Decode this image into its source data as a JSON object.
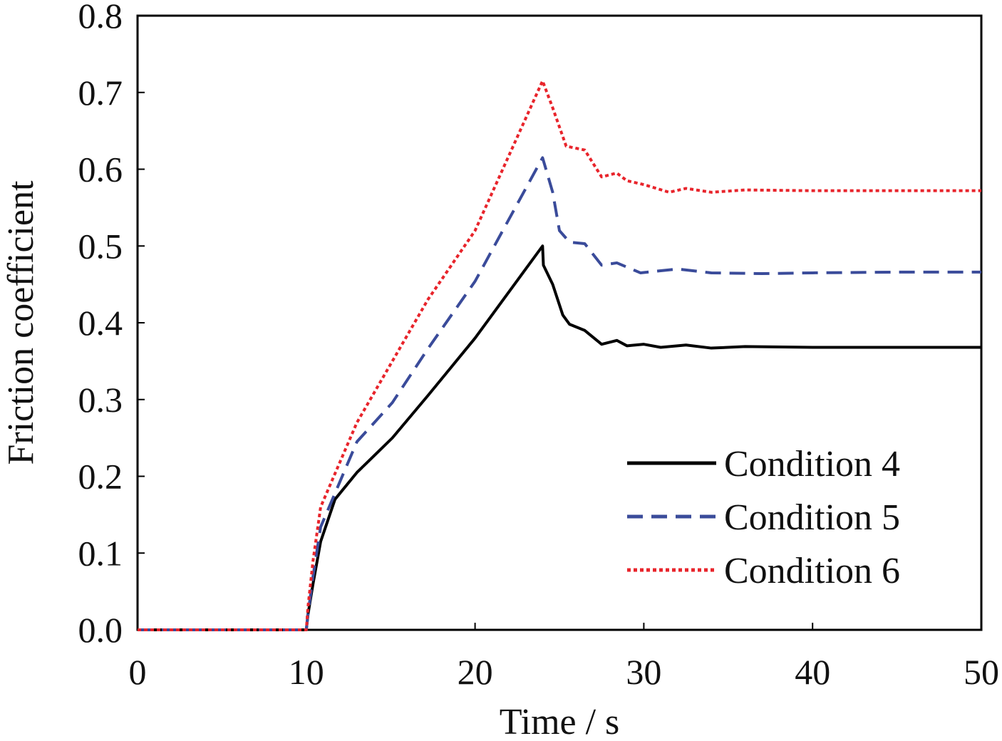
{
  "chart_data": {
    "type": "line",
    "title": "",
    "xlabel": "Time / s",
    "ylabel": "Friction coefficient",
    "xlim": [
      0,
      50
    ],
    "ylim": [
      0,
      0.8
    ],
    "xticks": [
      0,
      10,
      20,
      30,
      40,
      50
    ],
    "xtick_labels": [
      "0",
      "10",
      "20",
      "30",
      "40",
      "50"
    ],
    "yticks": [
      0,
      0.1,
      0.2,
      0.3,
      0.4,
      0.5,
      0.6,
      0.7,
      0.8
    ],
    "ytick_labels": [
      "0.0",
      "0.1",
      "0.2",
      "0.3",
      "0.4",
      "0.5",
      "0.6",
      "0.7",
      "0.8"
    ],
    "grid": false,
    "legend_position": "bottom-right",
    "series": [
      {
        "name": "Condition 4",
        "color": "#000000",
        "style": "solid",
        "x": [
          0,
          10,
          10.1,
          10.4,
          10.85,
          11.7,
          13,
          15.1,
          17.2,
          20,
          24,
          24.05,
          24.6,
          25.2,
          25.6,
          26.5,
          27.5,
          28.4,
          29,
          30,
          31,
          32.5,
          34,
          36,
          40,
          50
        ],
        "y": [
          0,
          0,
          0.02,
          0.06,
          0.115,
          0.17,
          0.205,
          0.25,
          0.305,
          0.38,
          0.5,
          0.475,
          0.45,
          0.41,
          0.398,
          0.39,
          0.372,
          0.377,
          0.37,
          0.372,
          0.368,
          0.371,
          0.367,
          0.369,
          0.368,
          0.368
        ]
      },
      {
        "name": "Condition 5",
        "color": "#3a4b9a",
        "style": "dashed",
        "x": [
          0,
          10,
          10.1,
          10.4,
          10.85,
          13,
          15.1,
          17.2,
          20,
          24,
          24.6,
          25,
          25.6,
          26.5,
          27.5,
          28.4,
          29.8,
          32,
          34,
          37,
          40,
          45,
          50
        ],
        "y": [
          0,
          0,
          0.02,
          0.07,
          0.134,
          0.245,
          0.296,
          0.366,
          0.454,
          0.615,
          0.57,
          0.52,
          0.505,
          0.503,
          0.475,
          0.478,
          0.465,
          0.47,
          0.465,
          0.464,
          0.465,
          0.466,
          0.466
        ]
      },
      {
        "name": "Condition 6",
        "color": "#e8242b",
        "style": "dotted",
        "x": [
          0,
          10,
          10.1,
          10.4,
          10.85,
          13,
          15.1,
          17.2,
          20,
          24,
          24.6,
          25.4,
          26.5,
          27.5,
          28.4,
          29,
          30,
          31.5,
          32.5,
          34,
          36,
          40,
          45,
          50
        ],
        "y": [
          0,
          0,
          0.03,
          0.09,
          0.16,
          0.27,
          0.35,
          0.43,
          0.52,
          0.715,
          0.68,
          0.63,
          0.625,
          0.59,
          0.595,
          0.585,
          0.58,
          0.57,
          0.575,
          0.57,
          0.573,
          0.572,
          0.572,
          0.572
        ]
      }
    ]
  }
}
